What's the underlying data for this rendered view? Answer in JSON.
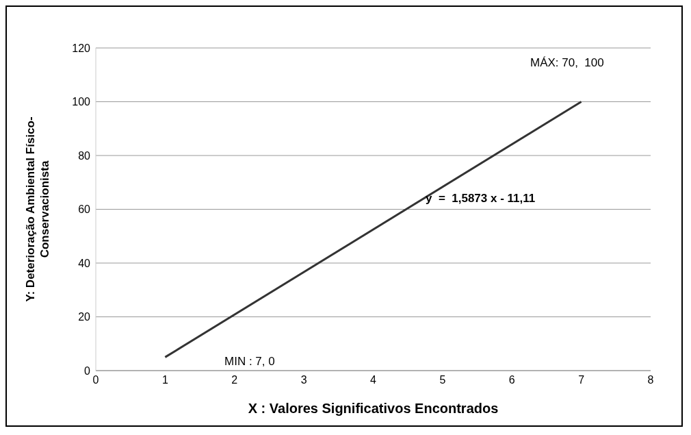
{
  "chart_data": {
    "type": "line",
    "x": [
      1,
      7
    ],
    "series": [
      {
        "color": "#333333",
        "values": [
          5,
          100
        ]
      }
    ],
    "xlabel": "X :   Valores Significativos  Encontrados",
    "ylabel": "Y:   Deterioração Ambiental Físico-\nConservacionista",
    "xlim": [
      0,
      8
    ],
    "xticks": [
      0,
      1,
      2,
      3,
      4,
      5,
      6,
      7,
      8
    ],
    "ylim": [
      0,
      120
    ],
    "yticks": [
      0,
      20,
      40,
      60,
      80,
      100,
      120
    ],
    "grid": "y",
    "marker": "none",
    "line_style": "solid",
    "annotations": [
      "MÁX: 70,  100",
      "MIN : 7, 0",
      "y  =  1,5873 x - 11,11"
    ]
  }
}
